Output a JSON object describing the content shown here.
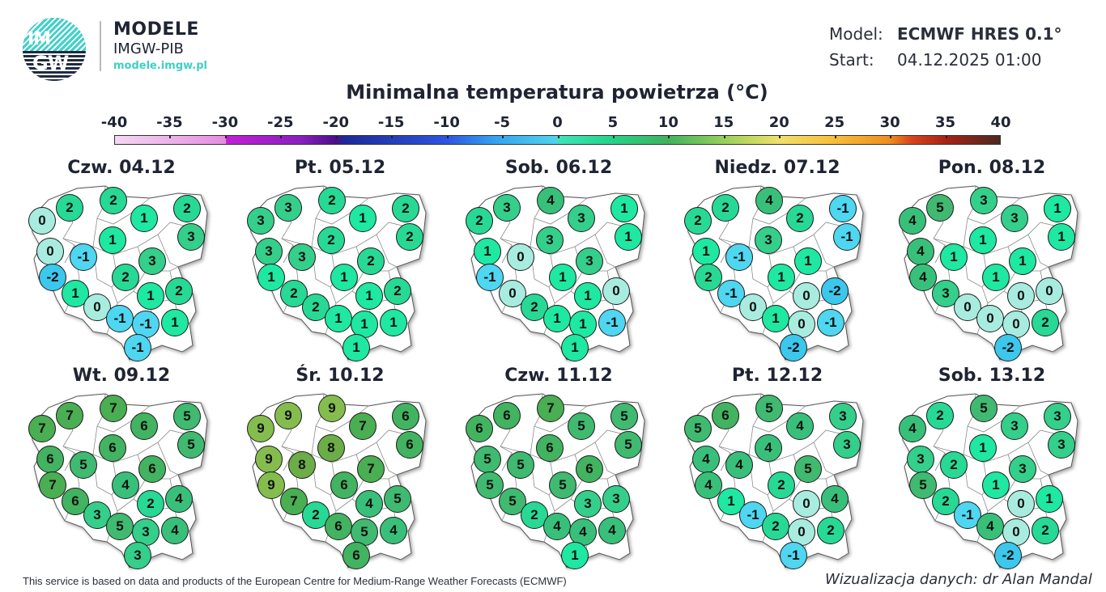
{
  "header": {
    "logo_text_top": "IM",
    "logo_text_bottom": "GW",
    "brand_title": "MODELE",
    "brand_subtitle": "IMGW-PIB",
    "brand_url": "modele.imgw.pl",
    "model_label": "Model:",
    "model_value": "ECMWF HRES 0.1°",
    "start_label": "Start:",
    "start_value": "04.12.2025 01:00"
  },
  "title": "Minimalna temperatura powietrza (°C)",
  "colorbar": {
    "ticks": [
      "-40",
      "-35",
      "-30",
      "-25",
      "-20",
      "-15",
      "-10",
      "-5",
      "0",
      "5",
      "10",
      "15",
      "20",
      "25",
      "30",
      "35",
      "40"
    ],
    "min": -40,
    "max": 40,
    "colors": {
      "-2": "#3cc7ec",
      "-1": "#4fd6f0",
      "0": "#a7ecdf",
      "1": "#1ee8a2",
      "2": "#27d994",
      "3": "#34cf8a",
      "4": "#38c07a",
      "5": "#3fba70",
      "6": "#42b360",
      "7": "#4aae52",
      "8": "#6cad48",
      "9": "#84bd4e"
    }
  },
  "days": [
    {
      "label": "Czw. 04.12",
      "values": [
        0,
        2,
        2,
        1,
        2,
        3,
        0,
        -1,
        1,
        -2,
        2,
        3,
        1,
        0,
        -1,
        -1,
        1,
        2,
        1,
        -1
      ]
    },
    {
      "label": "Pt. 05.12",
      "values": [
        3,
        3,
        2,
        1,
        2,
        2,
        3,
        3,
        2,
        1,
        1,
        2,
        2,
        2,
        1,
        1,
        1,
        2,
        1,
        1
      ]
    },
    {
      "label": "Sob. 06.12",
      "values": [
        2,
        3,
        4,
        3,
        1,
        1,
        1,
        0,
        3,
        -1,
        1,
        3,
        0,
        2,
        1,
        1,
        1,
        0,
        -1,
        1
      ]
    },
    {
      "label": "Niedz. 07.12",
      "values": [
        2,
        2,
        4,
        2,
        -1,
        -1,
        1,
        -1,
        3,
        2,
        1,
        1,
        -1,
        0,
        1,
        0,
        0,
        -2,
        -1,
        -2
      ]
    },
    {
      "label": "Pon. 08.12",
      "values": [
        4,
        5,
        3,
        3,
        1,
        1,
        4,
        1,
        1,
        4,
        1,
        1,
        3,
        0,
        0,
        0,
        0,
        0,
        2,
        -2
      ]
    },
    {
      "label": "Wt. 09.12",
      "values": [
        7,
        7,
        7,
        6,
        5,
        5,
        6,
        5,
        6,
        7,
        4,
        6,
        6,
        3,
        5,
        3,
        2,
        4,
        4,
        3
      ]
    },
    {
      "label": "Śr. 10.12",
      "values": [
        9,
        9,
        9,
        7,
        6,
        6,
        9,
        8,
        8,
        9,
        6,
        7,
        7,
        2,
        6,
        5,
        4,
        5,
        4,
        6
      ]
    },
    {
      "label": "Czw. 11.12",
      "values": [
        6,
        6,
        7,
        5,
        5,
        5,
        5,
        5,
        6,
        5,
        5,
        6,
        5,
        2,
        4,
        4,
        3,
        3,
        4,
        1
      ]
    },
    {
      "label": "Pt. 12.12",
      "values": [
        5,
        6,
        5,
        4,
        3,
        3,
        4,
        4,
        4,
        4,
        2,
        5,
        1,
        -1,
        2,
        0,
        0,
        4,
        2,
        -1
      ]
    },
    {
      "label": "Sob. 13.12",
      "values": [
        4,
        2,
        5,
        3,
        3,
        3,
        3,
        2,
        1,
        5,
        1,
        3,
        2,
        -1,
        4,
        0,
        0,
        1,
        2,
        -2
      ]
    }
  ],
  "footer": {
    "attribution": "This service is based on data and products of the European Centre for Medium-Range Weather Forecasts (ECMWF)",
    "credit": "Wizualizacja danych: dr Alan Mandal"
  }
}
